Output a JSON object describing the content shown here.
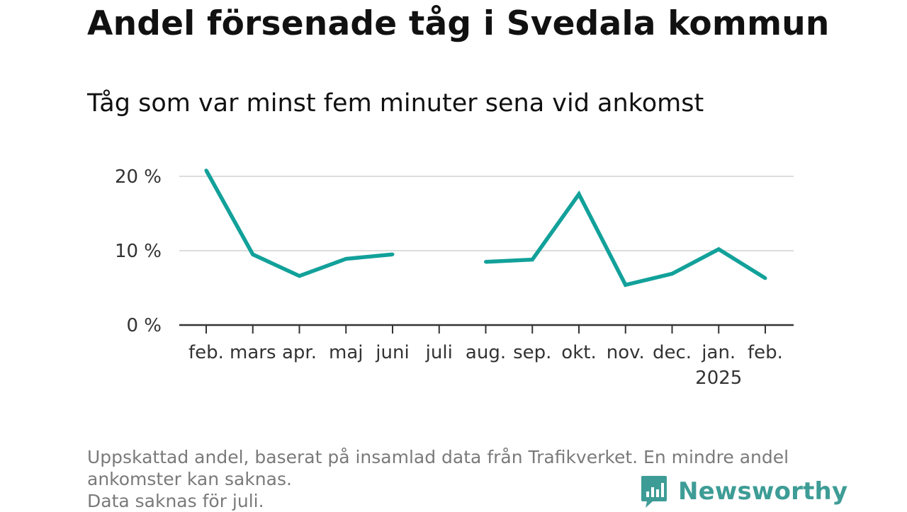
{
  "title": "Andel försenade tåg i Svedala kommun",
  "subtitle": "Tåg som var minst fem minuter sena vid ankomst",
  "footnote": {
    "line1": "Uppskattad andel, baserat på insamlad data från Trafikverket. En mindre andel",
    "line2": "ankomster kan saknas.",
    "line3": "Data saknas för juli."
  },
  "brand": {
    "name": "Newsworthy",
    "color": "#3e9c96",
    "icon": "bar-chart-speech-bubble-icon"
  },
  "colors": {
    "line": "#12a19a",
    "grid": "#dddddd",
    "axis": "#333333"
  },
  "chart_data": {
    "type": "line",
    "categories": [
      "feb.",
      "mars",
      "apr.",
      "maj",
      "juni",
      "juli",
      "aug.",
      "sep.",
      "okt.",
      "nov.",
      "dec.",
      "jan.",
      "feb."
    ],
    "category_sublabels": [
      "",
      "",
      "",
      "",
      "",
      "",
      "",
      "",
      "",
      "",
      "",
      "2025",
      ""
    ],
    "series": [
      {
        "values": [
          20.8,
          9.5,
          6.6,
          8.9,
          9.5,
          null,
          8.5,
          8.8,
          17.6,
          5.4,
          6.9,
          10.2,
          6.3
        ]
      }
    ],
    "y_ticks": [
      0,
      10,
      20
    ],
    "y_tick_labels": [
      "0 %",
      "10 %",
      "20 %"
    ],
    "ylim": [
      0,
      20
    ],
    "grid": true,
    "legend": "none"
  }
}
